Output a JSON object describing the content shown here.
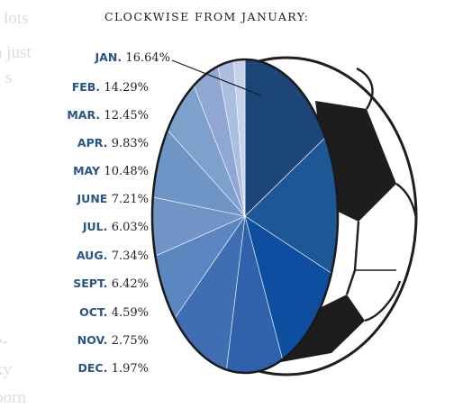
{
  "chart_data": {
    "type": "pie",
    "title": "CLOCKWISE FROM JANUARY:",
    "categories": [
      "JAN.",
      "FEB.",
      "MAR.",
      "APR.",
      "MAY",
      "JUNE",
      "JUL.",
      "AUG.",
      "SEPT.",
      "OCT.",
      "NOV.",
      "DEC."
    ],
    "values": [
      16.64,
      14.29,
      12.45,
      9.83,
      10.48,
      7.21,
      6.03,
      7.34,
      6.42,
      4.59,
      2.75,
      1.97
    ],
    "value_labels": [
      "16.64%",
      "14.29%",
      "12.45%",
      "9.83%",
      "10.48%",
      "7.21%",
      "6.03%",
      "7.34%",
      "6.42%",
      "4.59%",
      "2.75%",
      "1.97%"
    ],
    "unit": "%",
    "start": "12 o'clock",
    "direction": "clockwise",
    "legend_position": "left",
    "colors": [
      "#1c4578",
      "#1e5796",
      "#0d4ea0",
      "#2f62aa",
      "#3f6fb2",
      "#5c86c0",
      "#7293c5",
      "#6f94c6",
      "#7ea0cd",
      "#90a7d3",
      "#abbde0",
      "#c6d2e9"
    ],
    "gap_colors": [
      "#d9e0ee",
      "#f2f4f9"
    ]
  },
  "background_text": [
    "l lots",
    "a just",
    "s",
    "e-",
    "ky",
    "born"
  ]
}
